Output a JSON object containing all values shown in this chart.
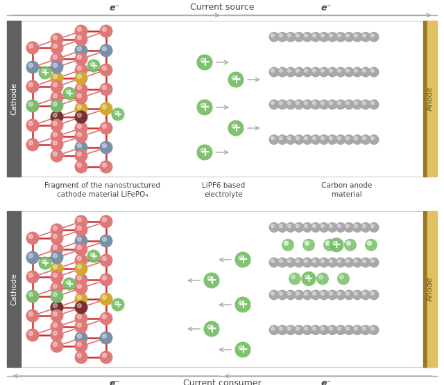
{
  "fig_width": 6.4,
  "fig_height": 5.56,
  "bg_color": "#ffffff",
  "top_label": "Current source",
  "bottom_label": "Current consumer",
  "e_label": "e⁻",
  "cathode_label": "Cathode",
  "anode_label": "Anode",
  "caption1_line1": "Fragment of the nanostructured",
  "caption1_line2": "cathode material LiFePO₄",
  "caption2_line1": "LiPF6 based",
  "caption2_line2": "electrolyte",
  "caption3_line1": "Carbon anode",
  "caption3_line2": "material",
  "pink_color": "#E07878",
  "blue_gray_color": "#7A90A8",
  "yellow_color": "#D4A830",
  "green_color": "#80B870",
  "dark_red_color": "#7A3030",
  "gray_color": "#A8A8A8",
  "gold_color": "#C8A030",
  "gold_light": "#E0C060",
  "li_color": "#78C068",
  "arrow_color": "#AAAAAA",
  "text_color": "#444444",
  "border_color": "#CCCCCC",
  "cathode_block_color": "#606060",
  "bond_color": "#CC3333"
}
